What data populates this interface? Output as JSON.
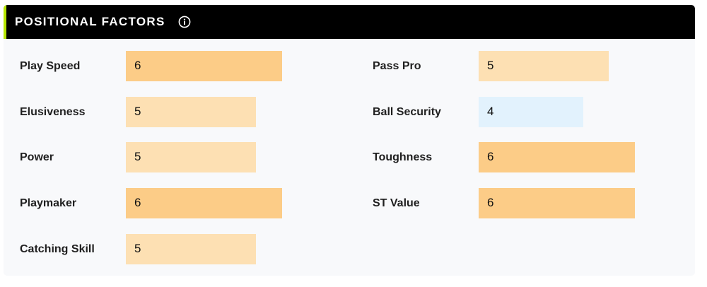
{
  "header": {
    "title": "POSITIONAL FACTORS",
    "info_icon": "info-circle-icon",
    "accent_color": "#b6e500"
  },
  "colors": {
    "score_6": "#fccc87",
    "score_5": "#fde0b3",
    "score_4": "#e2f2fd"
  },
  "left_factors": [
    {
      "label": "Play Speed",
      "value": "6"
    },
    {
      "label": "Elusiveness",
      "value": "5"
    },
    {
      "label": "Power",
      "value": "5"
    },
    {
      "label": "Playmaker",
      "value": "6"
    },
    {
      "label": "Catching Skill",
      "value": "5"
    }
  ],
  "right_factors": [
    {
      "label": "Pass Pro",
      "value": "5"
    },
    {
      "label": "Ball Security",
      "value": "4"
    },
    {
      "label": "Toughness",
      "value": "6"
    },
    {
      "label": "ST Value",
      "value": "6"
    }
  ]
}
